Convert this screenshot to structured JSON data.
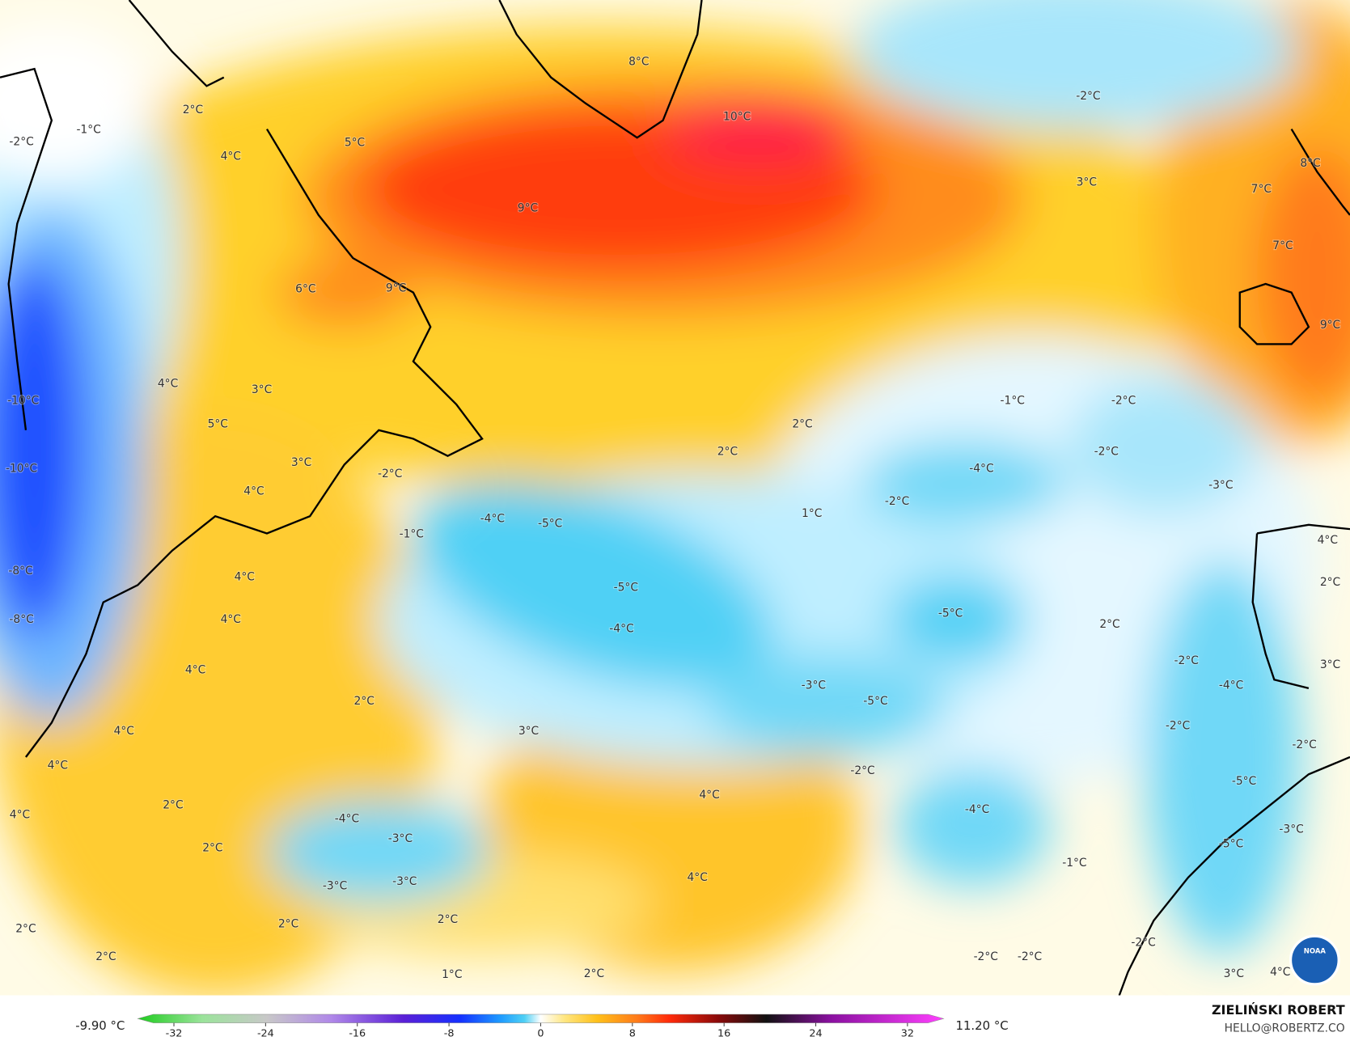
{
  "map": {
    "labels": [
      "8°C",
      "10°C",
      "2°C",
      "-1°C",
      "-2°C",
      "4°C",
      "5°C",
      "9°C",
      "-2°C",
      "3°C",
      "7°C",
      "8°C",
      "7°C",
      "6°C",
      "9°C",
      "9°C",
      "4°C",
      "-10°C",
      "3°C",
      "5°C",
      "2°C",
      "-1°C",
      "-2°C",
      "2°C",
      "-2°C",
      "-10°C",
      "3°C",
      "-2°C",
      "-4°C",
      "-3°C",
      "4°C",
      "-4°C",
      "-5°C",
      "-2°C",
      "1°C",
      "-1°C",
      "4°C",
      "-8°C",
      "4°C",
      "-5°C",
      "2°C",
      "-8°C",
      "4°C",
      "-5°C",
      "2°C",
      "-4°C",
      "4°C",
      "-2°C",
      "3°C",
      "2°C",
      "-3°C",
      "-5°C",
      "-4°C",
      "4°C",
      "3°C",
      "-2°C",
      "-2°C",
      "4°C",
      "-2°C",
      "-5°C",
      "4°C",
      "2°C",
      "-4°C",
      "4°C",
      "-4°C",
      "-3°C",
      "-3°C",
      "2°C",
      "-5°C",
      "-1°C",
      "-3°C",
      "-3°C",
      "4°C",
      "2°C",
      "2°C",
      "2°C",
      "-2°C",
      "2°C",
      "-2°C",
      "-2°C",
      "1°C",
      "2°C",
      "3°C",
      "4°C"
    ],
    "colorbar": {
      "min_label": "-9.90 °C",
      "max_label": "11.20 °C",
      "ticks": [
        -32,
        -24,
        -16,
        -8,
        0,
        8,
        16,
        24,
        32
      ]
    },
    "credit": {
      "name": "ZIELIŃSKI ROBERT",
      "email": "HELLO@ROBERTZ.CO"
    },
    "logo": "NOAA"
  }
}
